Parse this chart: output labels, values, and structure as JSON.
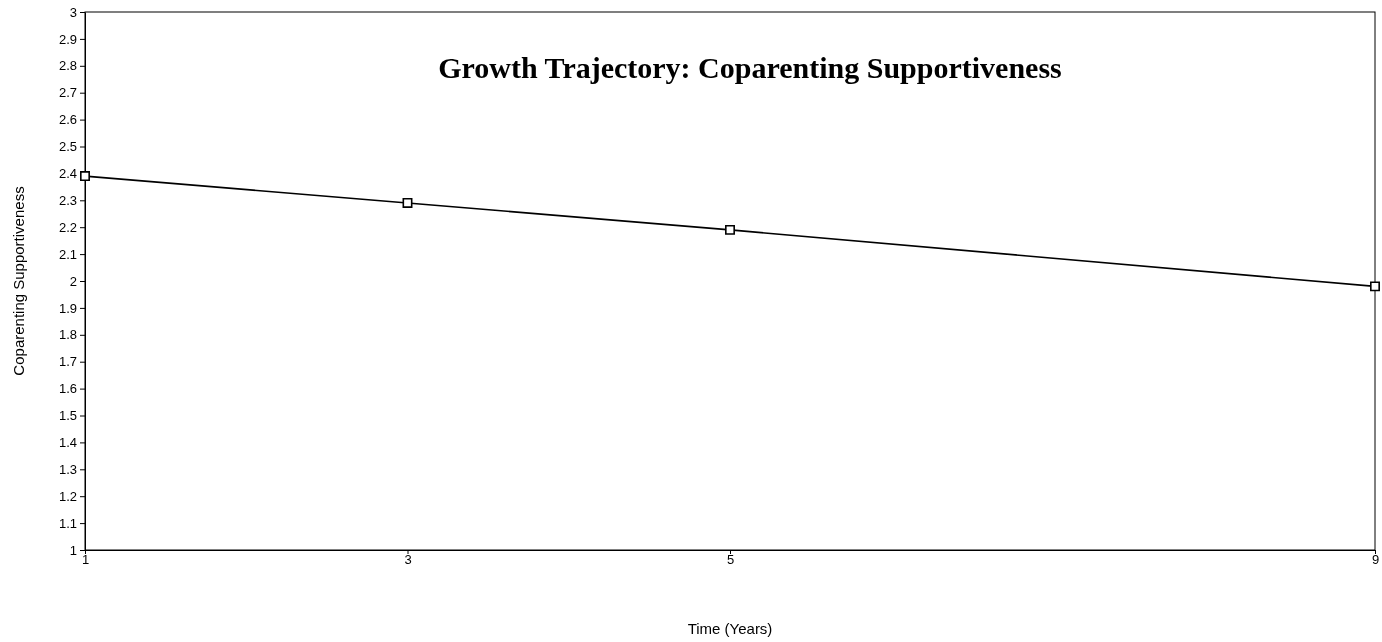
{
  "chart_data": {
    "type": "line",
    "title": "Growth Trajectory: Coparenting Supportiveness",
    "xlabel": "Time (Years)",
    "ylabel": "Coparenting Supportiveness",
    "x": [
      1,
      3,
      5,
      9
    ],
    "series": [
      {
        "color": "#000000",
        "values": [
          2.39,
          2.29,
          2.19,
          1.98
        ]
      }
    ],
    "xlim": [
      1,
      9
    ],
    "xticks": [
      1,
      3,
      5,
      9
    ],
    "ylim": [
      1,
      3
    ],
    "yticks": [
      1,
      1.1,
      1.2,
      1.3,
      1.4,
      1.5,
      1.6,
      1.7,
      1.8,
      1.9,
      2,
      2.1,
      2.2,
      2.3,
      2.4,
      2.5,
      2.6,
      2.7,
      2.8,
      2.9,
      3
    ],
    "grid": false,
    "marker": "square",
    "line_style": "solid"
  }
}
